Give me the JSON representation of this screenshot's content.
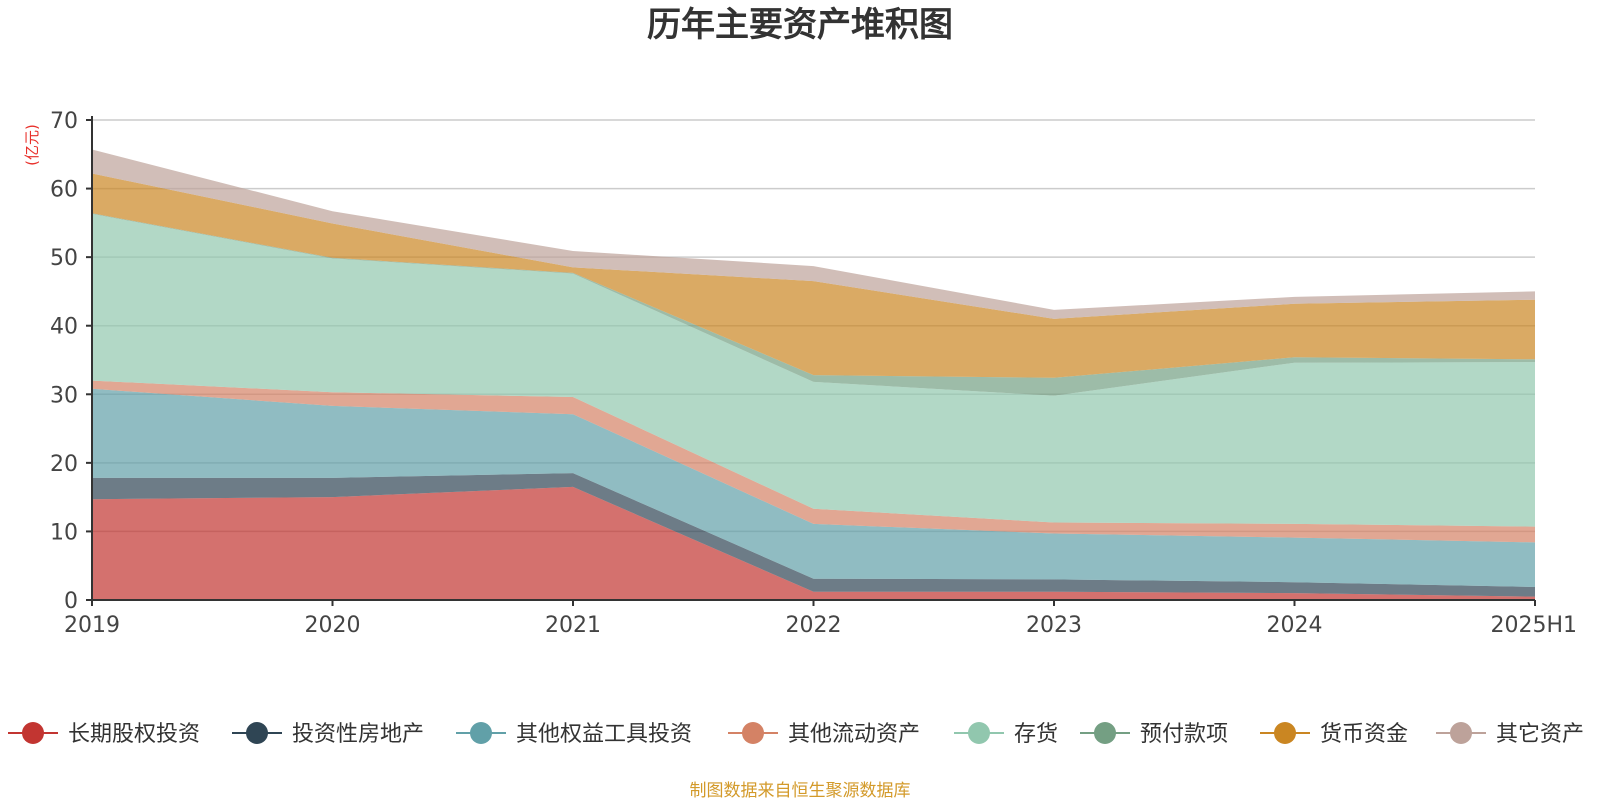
{
  "chart_data": {
    "type": "area",
    "stacked": true,
    "title": "历年主要资产堆积图",
    "unit": "(亿元)",
    "categories": [
      "2019",
      "2020",
      "2021",
      "2022",
      "2023",
      "2024",
      "2025H1"
    ],
    "ylim": [
      0,
      70
    ],
    "yticks": [
      0,
      10,
      20,
      30,
      40,
      50,
      60,
      70
    ],
    "grid": true,
    "legend_position": "bottom",
    "series": [
      {
        "name": "长期股权投资",
        "color": "#c23531",
        "values": [
          14.7,
          15.0,
          16.5,
          1.2,
          1.2,
          1.0,
          0.5
        ]
      },
      {
        "name": "投资性房地产",
        "color": "#2f4554",
        "values": [
          3.1,
          2.8,
          2.0,
          1.9,
          1.8,
          1.6,
          1.4
        ]
      },
      {
        "name": "其他权益工具投资",
        "color": "#61a0a8",
        "values": [
          13.0,
          10.5,
          8.6,
          8.0,
          6.7,
          6.5,
          6.5
        ]
      },
      {
        "name": "其他流动资产",
        "color": "#d48265",
        "values": [
          1.2,
          2.0,
          2.5,
          2.2,
          1.6,
          2.0,
          2.3
        ]
      },
      {
        "name": "存货",
        "color": "#91c7ae",
        "values": [
          24.3,
          19.5,
          18.0,
          18.5,
          18.5,
          23.5,
          24.0
        ]
      },
      {
        "name": "预付款项",
        "color": "#749f83",
        "values": [
          0.1,
          0.1,
          0.1,
          1.0,
          2.6,
          0.8,
          0.4
        ]
      },
      {
        "name": "货币资金",
        "color": "#ca8622",
        "values": [
          5.8,
          5.0,
          0.8,
          13.7,
          8.6,
          7.8,
          8.7
        ]
      },
      {
        "name": "其它资产",
        "color": "#bda29a",
        "values": [
          3.5,
          1.8,
          2.4,
          2.2,
          1.3,
          1.0,
          1.2
        ]
      }
    ],
    "source_note": "制图数据来自恒生聚源数据库"
  }
}
